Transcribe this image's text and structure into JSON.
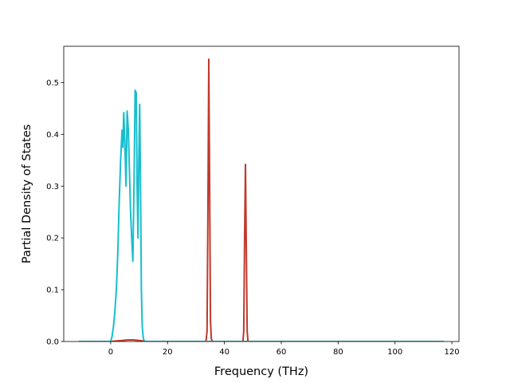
{
  "chart_data": {
    "type": "line",
    "title": "",
    "xlabel": "Frequency (THz)",
    "ylabel": "Partial Density of States",
    "xlim": [
      -16.5,
      122.5
    ],
    "ylim": [
      0,
      0.57
    ],
    "xticks": [
      0,
      20,
      40,
      60,
      80,
      100,
      120
    ],
    "yticks": [
      0.0,
      0.1,
      0.2,
      0.3,
      0.4,
      0.5
    ],
    "xtick_labels": [
      "0",
      "20",
      "40",
      "60",
      "80",
      "100",
      "120"
    ],
    "ytick_labels": [
      "0.0",
      "0.1",
      "0.2",
      "0.3",
      "0.4",
      "0.5"
    ],
    "grid": false,
    "legend": "none",
    "series": [
      {
        "color": "#c0392b",
        "x": [
          -11,
          0,
          2,
          4,
          6,
          8,
          10,
          11.5,
          12.5,
          33.5,
          33.9,
          34.2,
          34.5,
          34.8,
          35.1,
          35.4,
          35.8,
          46.5,
          46.8,
          47.1,
          47.4,
          47.7,
          48.0,
          48.3,
          117
        ],
        "y": [
          0,
          0,
          0.001,
          0.002,
          0.003,
          0.003,
          0.002,
          0.001,
          0,
          0,
          0.02,
          0.25,
          0.545,
          0.3,
          0.04,
          0.005,
          0,
          0,
          0.02,
          0.2,
          0.342,
          0.18,
          0.02,
          0,
          0
        ]
      },
      {
        "color": "#17becf",
        "x": [
          -11,
          0,
          0.5,
          1,
          1.5,
          2,
          2.5,
          3,
          3.5,
          4,
          4.3,
          4.6,
          5.0,
          5.4,
          5.8,
          6.2,
          6.6,
          7.0,
          7.4,
          7.8,
          8.2,
          8.6,
          9.0,
          9.3,
          9.6,
          9.9,
          10.2,
          10.5,
          10.8,
          11.1,
          11.4,
          11.7,
          12.0,
          12.3,
          117
        ],
        "y": [
          0,
          0,
          0.01,
          0.03,
          0.06,
          0.1,
          0.17,
          0.27,
          0.35,
          0.408,
          0.375,
          0.442,
          0.38,
          0.3,
          0.445,
          0.41,
          0.33,
          0.25,
          0.2,
          0.155,
          0.3,
          0.485,
          0.48,
          0.3,
          0.2,
          0.35,
          0.458,
          0.3,
          0.1,
          0.03,
          0.01,
          0.002,
          0,
          0,
          0
        ]
      }
    ]
  }
}
